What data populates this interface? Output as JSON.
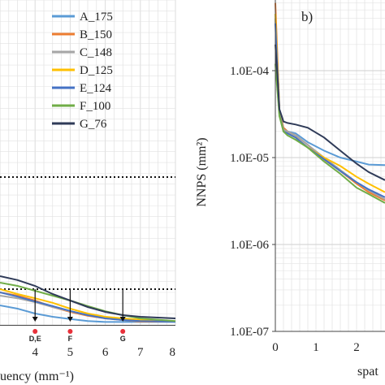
{
  "chart_data": [
    {
      "panel": "a",
      "type": "line",
      "xlabel": "uency (mm⁻¹)",
      "x_ticks": [
        "4",
        "5",
        "6",
        "7",
        "8"
      ],
      "xlim": [
        3.0,
        8.0
      ],
      "grid": true,
      "legend_position": "top-right",
      "colors": [
        "#5b9bd5",
        "#ed7d31",
        "#a5a5a5",
        "#ffc000",
        "#4472c4",
        "#70ad47",
        "#2f3b58"
      ],
      "legend": [
        "A_175",
        "B_150",
        "C_148",
        "D_125",
        "E_124",
        "F_100",
        "G_76"
      ],
      "reference_lines": [
        {
          "y_level": 0.455,
          "style": "dotted"
        },
        {
          "y_level": 0.11,
          "style": "dotted"
        }
      ],
      "markers": [
        {
          "label": "D,E",
          "x": 4.0
        },
        {
          "label": "F",
          "x": 5.0
        },
        {
          "label": "G",
          "x": 6.5
        }
      ],
      "series": [
        {
          "name": "A_175",
          "points": [
            [
              3.0,
              0.06
            ],
            [
              3.5,
              0.05
            ],
            [
              4,
              0.035
            ],
            [
              4.5,
              0.025
            ],
            [
              5,
              0.018
            ],
            [
              5.5,
              0.012
            ],
            [
              6,
              0.009
            ],
            [
              7,
              0.009
            ],
            [
              8,
              0.009
            ]
          ]
        },
        {
          "name": "B_150",
          "points": [
            [
              3.0,
              0.1
            ],
            [
              3.5,
              0.09
            ],
            [
              4,
              0.075
            ],
            [
              4.5,
              0.055
            ],
            [
              5,
              0.04
            ],
            [
              5.5,
              0.028
            ],
            [
              6,
              0.02
            ],
            [
              6.5,
              0.015
            ],
            [
              7,
              0.01
            ],
            [
              8,
              0.01
            ]
          ]
        },
        {
          "name": "C_148",
          "points": [
            [
              3.0,
              0.09
            ],
            [
              3.5,
              0.082
            ],
            [
              4,
              0.07
            ],
            [
              4.5,
              0.055
            ],
            [
              5,
              0.042
            ],
            [
              5.5,
              0.03
            ],
            [
              6,
              0.022
            ],
            [
              6.5,
              0.015
            ],
            [
              7,
              0.012
            ],
            [
              8,
              0.01
            ]
          ]
        },
        {
          "name": "D_125",
          "points": [
            [
              3.0,
              0.11
            ],
            [
              3.5,
              0.095
            ],
            [
              4,
              0.082
            ],
            [
              4.5,
              0.068
            ],
            [
              5,
              0.05
            ],
            [
              5.5,
              0.035
            ],
            [
              6,
              0.025
            ],
            [
              6.5,
              0.02
            ],
            [
              7,
              0.016
            ],
            [
              8,
              0.01
            ]
          ]
        },
        {
          "name": "E_124",
          "points": [
            [
              3.0,
              0.1
            ],
            [
              3.5,
              0.087
            ],
            [
              4,
              0.072
            ],
            [
              4.5,
              0.058
            ],
            [
              5,
              0.043
            ],
            [
              5.5,
              0.03
            ],
            [
              6,
              0.02
            ],
            [
              6.5,
              0.015
            ],
            [
              7,
              0.012
            ],
            [
              8,
              0.01
            ]
          ]
        },
        {
          "name": "F_100",
          "points": [
            [
              3.0,
              0.13
            ],
            [
              3.5,
              0.12
            ],
            [
              4,
              0.105
            ],
            [
              4.5,
              0.09
            ],
            [
              5,
              0.075
            ],
            [
              5.5,
              0.058
            ],
            [
              6,
              0.042
            ],
            [
              6.5,
              0.03
            ],
            [
              7,
              0.02
            ],
            [
              8,
              0.012
            ]
          ]
        },
        {
          "name": "G_76",
          "points": [
            [
              3.0,
              0.15
            ],
            [
              3.5,
              0.138
            ],
            [
              4,
              0.12
            ],
            [
              4.5,
              0.095
            ],
            [
              5,
              0.075
            ],
            [
              5.5,
              0.055
            ],
            [
              6,
              0.04
            ],
            [
              6.5,
              0.03
            ],
            [
              7,
              0.025
            ],
            [
              8,
              0.02
            ]
          ]
        }
      ]
    },
    {
      "panel": "b",
      "panel_label": "b)",
      "type": "line",
      "y_scale": "log",
      "ylabel": "NNPS (mm²)",
      "xlabel": "spat",
      "y_ticks": [
        "1.0E-04",
        "1.0E-05",
        "1.0E-06",
        "1.0E-07"
      ],
      "x_ticks": [
        "0",
        "1",
        "2"
      ],
      "xlim": [
        0,
        2.7
      ],
      "ylim": [
        1e-07,
        0.00065
      ],
      "grid": true,
      "colors": [
        "#5b9bd5",
        "#ed7d31",
        "#a5a5a5",
        "#ffc000",
        "#4472c4",
        "#70ad47",
        "#2f3b58"
      ],
      "series": [
        {
          "name": "A_175",
          "points": [
            [
              0.0,
              0.0004
            ],
            [
              0.05,
              0.00013
            ],
            [
              0.1,
              3.5e-05
            ],
            [
              0.2,
              2.2e-05
            ],
            [
              0.3,
              2e-05
            ],
            [
              0.5,
              1.9e-05
            ],
            [
              0.8,
              1.5e-05
            ],
            [
              1.2,
              1.2e-05
            ],
            [
              1.6,
              1e-05
            ],
            [
              2.0,
              9e-06
            ],
            [
              2.3,
              8.3e-06
            ],
            [
              2.7,
              8.2e-06
            ]
          ]
        },
        {
          "name": "B_150",
          "points": [
            [
              0.0,
              0.0006
            ],
            [
              0.05,
              0.00015
            ],
            [
              0.1,
              3.5e-05
            ],
            [
              0.2,
              2.2e-05
            ],
            [
              0.3,
              2e-05
            ],
            [
              0.5,
              1.8e-05
            ],
            [
              0.8,
              1.4e-05
            ],
            [
              1.2,
              9.5e-06
            ],
            [
              1.6,
              7e-06
            ],
            [
              2.0,
              5e-06
            ],
            [
              2.3,
              4e-06
            ],
            [
              2.7,
              3.2e-06
            ]
          ]
        },
        {
          "name": "C_148",
          "points": [
            [
              0.0,
              0.0004
            ],
            [
              0.05,
              0.00012
            ],
            [
              0.1,
              3.3e-05
            ],
            [
              0.2,
              2.1e-05
            ],
            [
              0.3,
              2e-05
            ],
            [
              0.5,
              1.8e-05
            ],
            [
              0.8,
              1.4e-05
            ],
            [
              1.2,
              1e-05
            ],
            [
              1.6,
              7.2e-06
            ],
            [
              2.0,
              5.2e-06
            ],
            [
              2.3,
              4.2e-06
            ],
            [
              2.7,
              3.3e-06
            ]
          ]
        },
        {
          "name": "D_125",
          "points": [
            [
              0.0,
              0.00045
            ],
            [
              0.05,
              0.00012
            ],
            [
              0.1,
              3.2e-05
            ],
            [
              0.2,
              2e-05
            ],
            [
              0.3,
              1.9e-05
            ],
            [
              0.5,
              1.7e-05
            ],
            [
              0.8,
              1.3e-05
            ],
            [
              1.2,
              1e-05
            ],
            [
              1.6,
              8e-06
            ],
            [
              2.0,
              6e-06
            ],
            [
              2.3,
              5e-06
            ],
            [
              2.7,
              4e-06
            ]
          ]
        },
        {
          "name": "E_124",
          "points": [
            [
              0.0,
              0.00035
            ],
            [
              0.05,
              0.0001
            ],
            [
              0.1,
              3.1e-05
            ],
            [
              0.2,
              2e-05
            ],
            [
              0.3,
              1.9e-05
            ],
            [
              0.5,
              1.7e-05
            ],
            [
              0.8,
              1.3e-05
            ],
            [
              1.2,
              9.6e-06
            ],
            [
              1.6,
              7e-06
            ],
            [
              2.0,
              5.2e-06
            ],
            [
              2.3,
              4.3e-06
            ],
            [
              2.7,
              3.5e-06
            ]
          ]
        },
        {
          "name": "F_100",
          "points": [
            [
              0.0,
              0.00012
            ],
            [
              0.05,
              6e-05
            ],
            [
              0.1,
              3e-05
            ],
            [
              0.2,
              2e-05
            ],
            [
              0.3,
              1.8e-05
            ],
            [
              0.5,
              1.6e-05
            ],
            [
              0.8,
              1.3e-05
            ],
            [
              1.2,
              9e-06
            ],
            [
              1.6,
              6.5e-06
            ],
            [
              2.0,
              4.5e-06
            ],
            [
              2.3,
              3.8e-06
            ],
            [
              2.7,
              3e-06
            ]
          ]
        },
        {
          "name": "G_76",
          "points": [
            [
              0.0,
              0.0002
            ],
            [
              0.05,
              9e-05
            ],
            [
              0.1,
              3.6e-05
            ],
            [
              0.2,
              2.6e-05
            ],
            [
              0.3,
              2.5e-05
            ],
            [
              0.5,
              2.4e-05
            ],
            [
              0.8,
              2.2e-05
            ],
            [
              1.2,
              1.7e-05
            ],
            [
              1.6,
              1.2e-05
            ],
            [
              2.0,
              8.5e-06
            ],
            [
              2.3,
              6.8e-06
            ],
            [
              2.7,
              5.5e-06
            ]
          ]
        }
      ]
    }
  ]
}
